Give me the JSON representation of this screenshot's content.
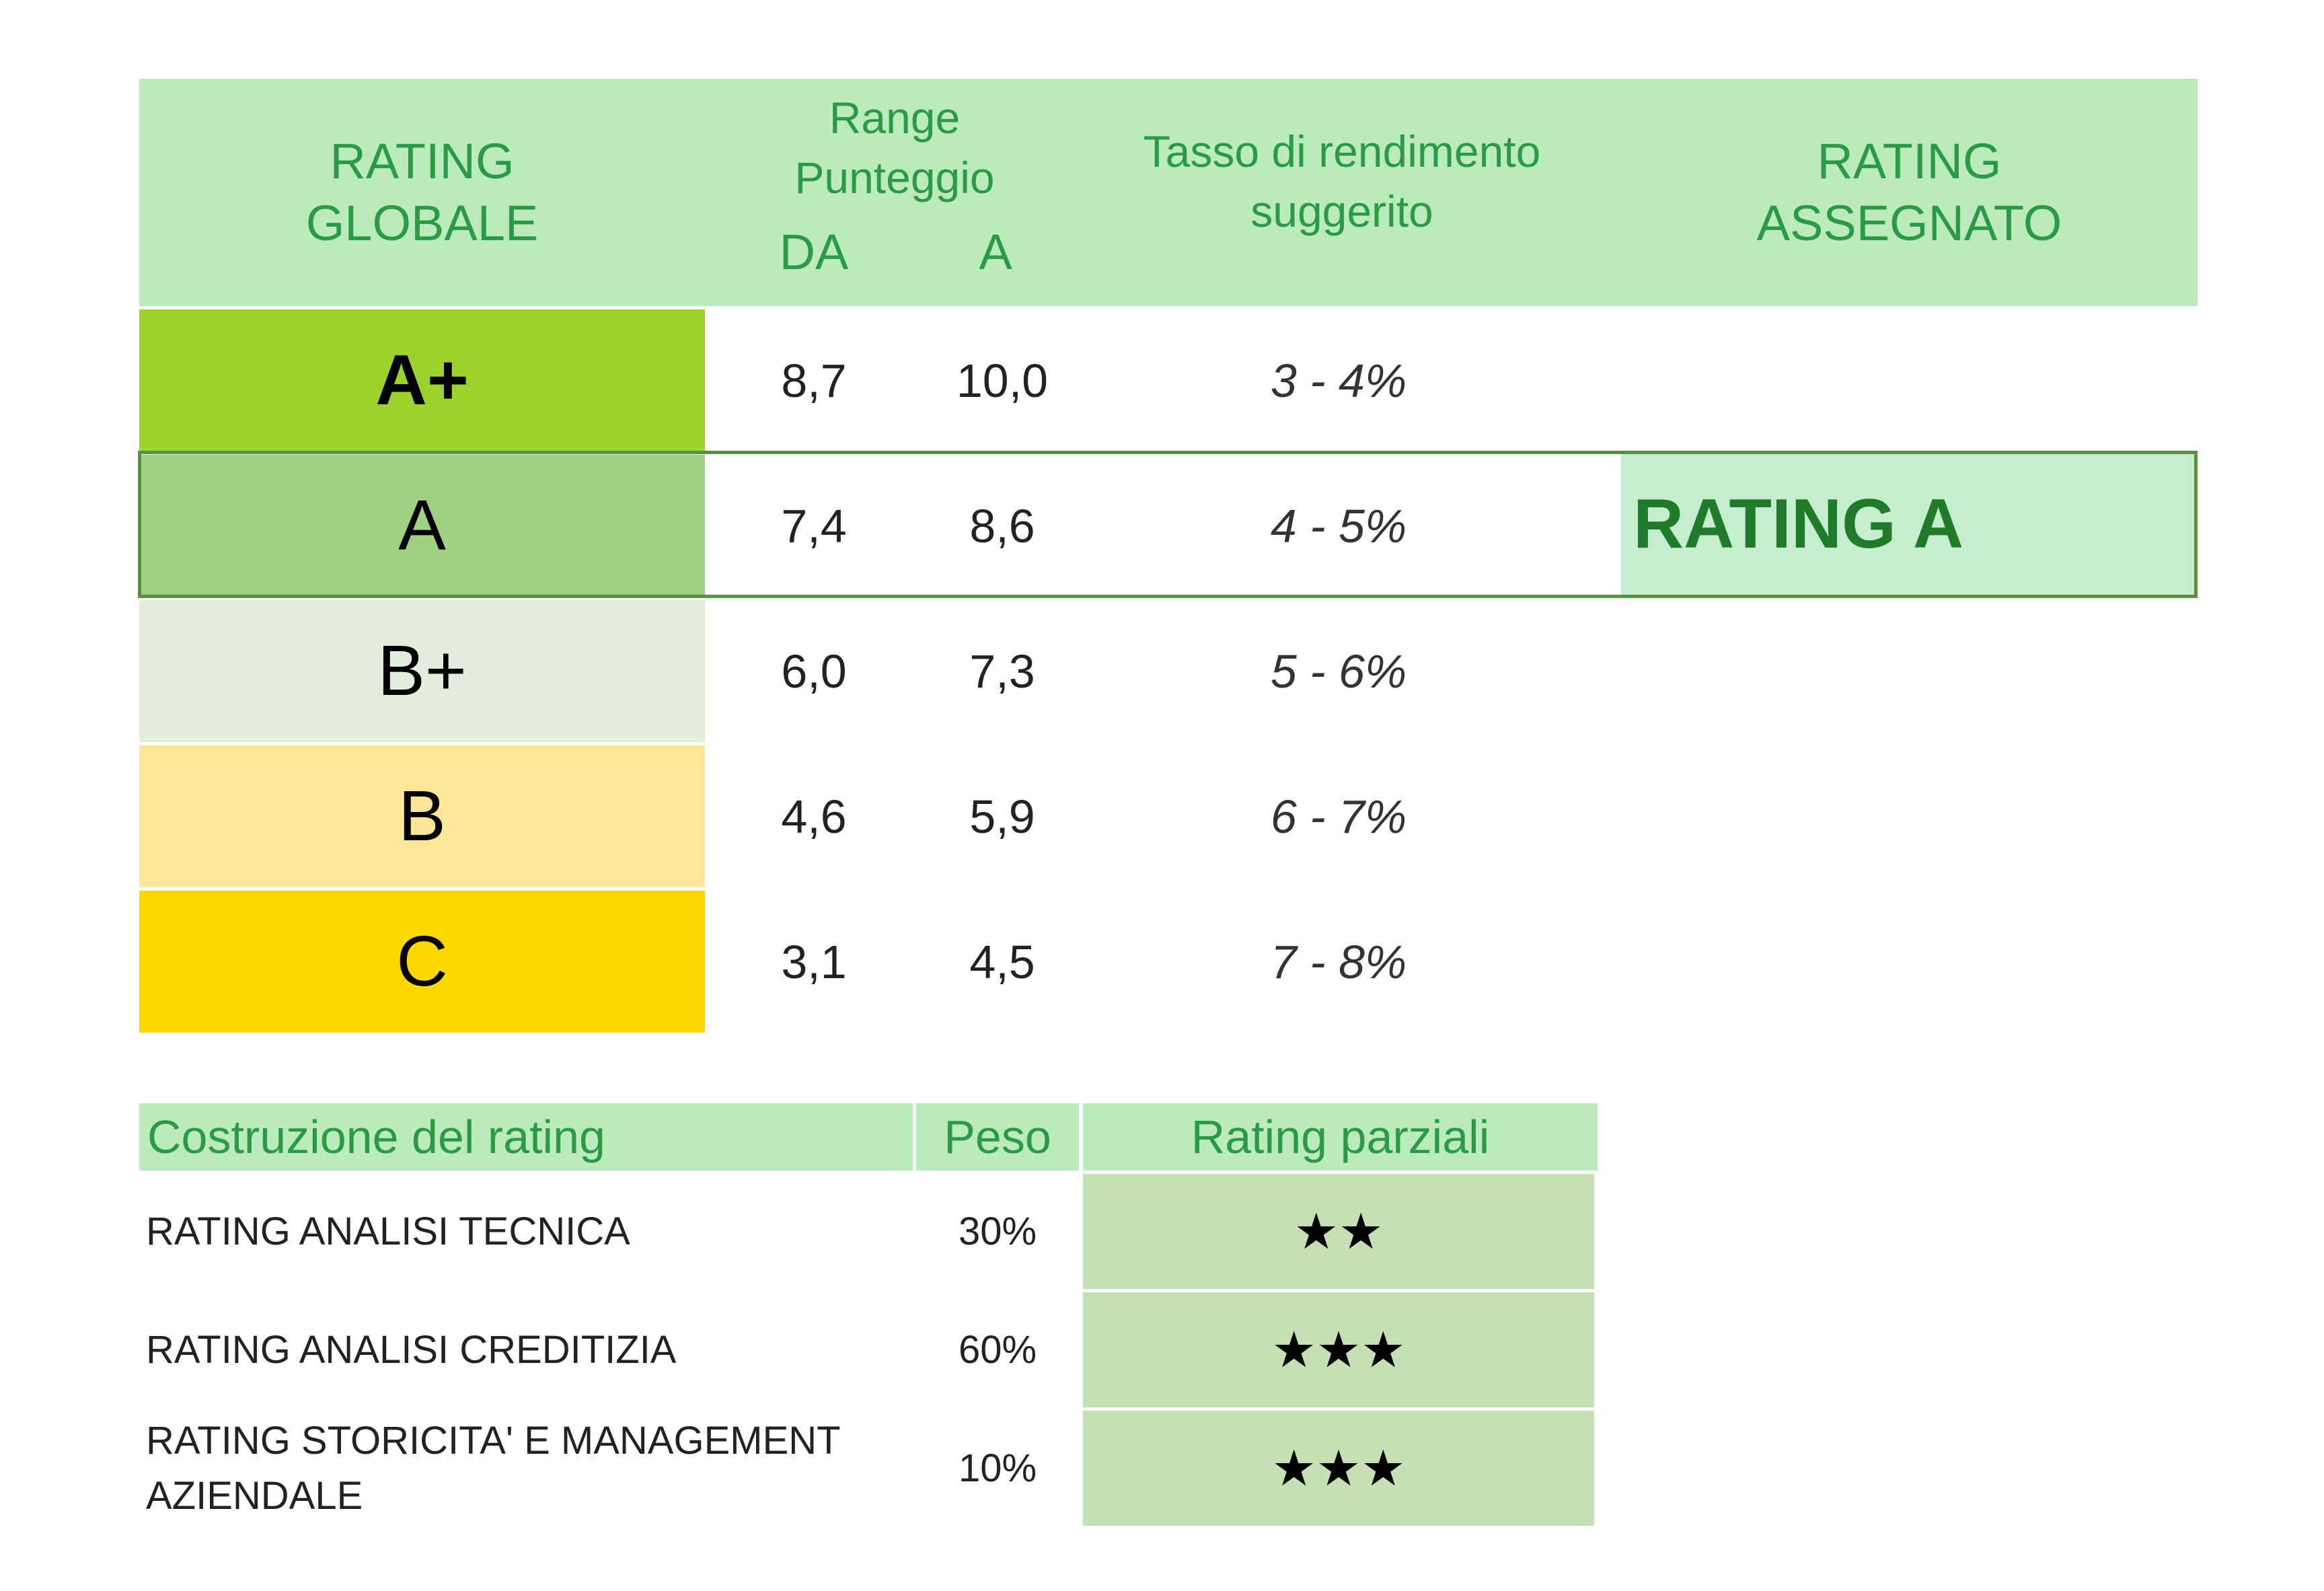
{
  "header": {
    "rating_globale": "RATING\nGLOBALE",
    "range": "Range\nPunteggio",
    "da": "DA",
    "a": "A",
    "tasso": "Tasso di rendimento\nsuggerito",
    "rating_assegnato": "RATING\nASSEGNATO"
  },
  "ratings": [
    {
      "label": "A+",
      "da": "8,7",
      "a": "10,0",
      "tasso": "3 - 4%",
      "color": "#9dd22d"
    },
    {
      "label": "A",
      "da": "7,4",
      "a": "8,6",
      "tasso": "4 - 5%",
      "color": "#9ed282"
    },
    {
      "label": "B+",
      "da": "6,0",
      "a": "7,3",
      "tasso": "5 - 6%",
      "color": "#e2efdc"
    },
    {
      "label": "B",
      "da": "4,6",
      "a": "5,9",
      "tasso": "6 - 7%",
      "color": "#fee599"
    },
    {
      "label": "C",
      "da": "3,1",
      "a": "4,5",
      "tasso": "7 - 8%",
      "color": "#fed600"
    }
  ],
  "assigned": {
    "label": "RATING A"
  },
  "construction": {
    "headers": {
      "title": "Costruzione del rating",
      "peso": "Peso",
      "parziali": "Rating parziali"
    },
    "rows": [
      {
        "name": "RATING  ANALISI TECNICA",
        "peso": "30%",
        "stars": "★★"
      },
      {
        "name": "RATING ANALISI CREDITIZIA",
        "peso": "60%",
        "stars": "★★★"
      },
      {
        "name": "RATING STORICITA' E MANAGEMENT AZIENDALE",
        "peso": "10%",
        "stars": "★★★"
      }
    ]
  }
}
